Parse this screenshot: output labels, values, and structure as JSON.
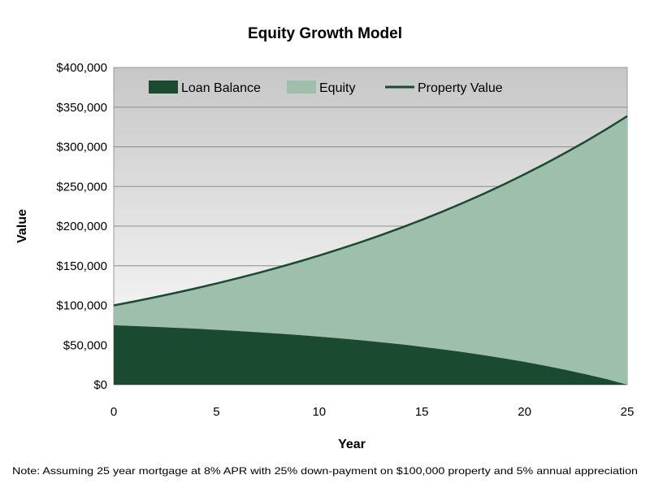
{
  "chart_data": {
    "type": "area",
    "title": "Equity Growth Model",
    "xlabel": "Year",
    "ylabel": "Value",
    "xlim": [
      0,
      25
    ],
    "ylim": [
      0,
      400000
    ],
    "x_ticks": [
      0,
      5,
      10,
      15,
      20,
      25
    ],
    "y_ticks": [
      0,
      50000,
      100000,
      150000,
      200000,
      250000,
      300000,
      350000,
      400000
    ],
    "y_tick_labels": [
      "$0",
      "$50,000",
      "$100,000",
      "$150,000",
      "$200,000",
      "$250,000",
      "$300,000",
      "$350,000",
      "$400,000"
    ],
    "grid": true,
    "legend_position": "top",
    "x": [
      0,
      1,
      2,
      3,
      4,
      5,
      6,
      7,
      8,
      9,
      10,
      11,
      12,
      13,
      14,
      15,
      16,
      17,
      18,
      19,
      20,
      21,
      22,
      23,
      24,
      25
    ],
    "series": [
      {
        "name": "Loan Balance",
        "kind": "area",
        "color": "#1a4a30",
        "values": [
          75000,
          74023,
          72965,
          71819,
          70578,
          69234,
          67779,
          66203,
          64497,
          62649,
          60647,
          58479,
          56132,
          53589,
          50836,
          47854,
          44624,
          41127,
          37339,
          33237,
          28794,
          23983,
          18773,
          13130,
          7019,
          0
        ]
      },
      {
        "name": "Equity",
        "kind": "area",
        "color": "#9dbfab",
        "values": [
          25000,
          30977,
          37285,
          43944,
          50973,
          58394,
          66231,
          74507,
          83249,
          92484,
          102242,
          112555,
          123454,
          134976,
          147156,
          160035,
          173652,
          188052,
          203281,
          219387,
          236424,
          254445,
          273511,
          293685,
          315031,
          338635
        ]
      },
      {
        "name": "Property Value",
        "kind": "line",
        "color": "#1a4a30",
        "values": [
          100000,
          105000,
          110250,
          115763,
          121551,
          127628,
          134010,
          140710,
          147746,
          155133,
          162889,
          171034,
          179586,
          188565,
          197993,
          207893,
          218287,
          229202,
          240662,
          252695,
          265330,
          278596,
          292526,
          307152,
          322510,
          338635
        ]
      }
    ],
    "note": "Note: Assuming 25 year mortgage at 8% APR with 25% down-payment on $100,000 property and 5% annual appreciation"
  }
}
